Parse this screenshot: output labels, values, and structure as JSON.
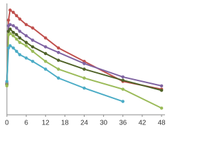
{
  "chart_data": {
    "type": "line",
    "x": [
      0,
      0.5,
      1,
      2,
      3,
      4,
      6,
      8,
      12,
      16,
      24,
      36,
      48
    ],
    "xlim": [
      0,
      48
    ],
    "xticks": [
      0,
      6,
      12,
      18,
      24,
      30,
      36,
      42,
      48
    ],
    "ylim": [
      0,
      100
    ],
    "series": [
      {
        "color": "#c0504d",
        "values": [
          29,
          85,
          94,
          92,
          89,
          86,
          81,
          78,
          69,
          60,
          48,
          30,
          23
        ]
      },
      {
        "color": "#8064a2",
        "values": [
          28,
          80,
          81,
          80,
          78,
          75,
          71,
          67,
          61,
          56,
          46,
          34,
          26
        ]
      },
      {
        "color": "#4f6228",
        "values": [
          27,
          75,
          77,
          74,
          72,
          69,
          65,
          61,
          55,
          49,
          41,
          31,
          22
        ]
      },
      {
        "color": "#9bbb59",
        "values": [
          26,
          72,
          73,
          71,
          68,
          65,
          62,
          57,
          48,
          41,
          33,
          23,
          6
        ]
      },
      {
        "color": "#4bacc6",
        "values": [
          30,
          60,
          62,
          60,
          57,
          54,
          51,
          48,
          41,
          33,
          24,
          12,
          null
        ]
      }
    ]
  }
}
